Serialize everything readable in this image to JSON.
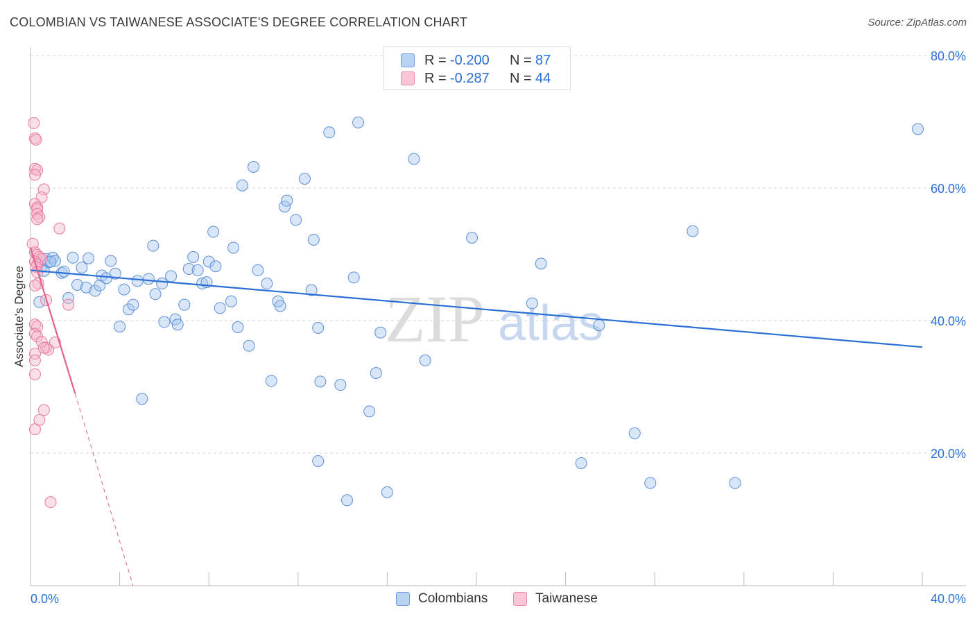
{
  "header": {
    "title": "COLOMBIAN VS TAIWANESE ASSOCIATE'S DEGREE CORRELATION CHART",
    "source": "Source: ZipAtlas.com"
  },
  "legend": {
    "rows": [
      {
        "r_label": "R = ",
        "r_value": "-0.200",
        "n_label": "N = ",
        "n_value": "87"
      },
      {
        "r_label": "R = ",
        "r_value": "-0.287",
        "n_label": "N = ",
        "n_value": "44"
      }
    ],
    "series": [
      "Colombians",
      "Taiwanese"
    ]
  },
  "watermark": {
    "zip": "ZIP",
    "atlas": "atlas"
  },
  "colors": {
    "blue_fill": "#a9c8f0",
    "blue_stroke": "#5b8fd8",
    "blue_line": "#2a6fd6",
    "pink_fill": "#f5b7c9",
    "pink_stroke": "#e87ba0",
    "pink_line": "#e4608e",
    "tick_label": "#2a6fd6",
    "grid": "#d5d5d5"
  },
  "chart_data": {
    "type": "scatter",
    "title": "COLOMBIAN VS TAIWANESE ASSOCIATE'S DEGREE CORRELATION CHART",
    "xlabel": "",
    "ylabel": "Associate's Degree",
    "xlim": [
      0,
      40
    ],
    "ylim": [
      0,
      80
    ],
    "x_tick_labels": [
      "0.0%",
      "40.0%"
    ],
    "y_ticks": [
      20,
      40,
      60,
      80
    ],
    "y_tick_labels": [
      "20.0%",
      "40.0%",
      "60.0%",
      "80.0%"
    ],
    "grid": true,
    "legend_position": "top-center",
    "series": [
      {
        "name": "Colombians",
        "color": "#a9c8f0",
        "trend": {
          "x": [
            0,
            40
          ],
          "y": [
            47.6,
            36.0
          ],
          "style": "solid"
        },
        "points": [
          [
            0.5,
            48.1
          ],
          [
            0.7,
            49.3
          ],
          [
            0.8,
            48.8
          ],
          [
            1.0,
            49.5
          ],
          [
            1.1,
            49.0
          ],
          [
            1.4,
            47.2
          ],
          [
            1.5,
            47.4
          ],
          [
            1.7,
            43.4
          ],
          [
            1.9,
            49.5
          ],
          [
            2.1,
            45.4
          ],
          [
            2.3,
            48.0
          ],
          [
            2.5,
            45.0
          ],
          [
            2.6,
            49.4
          ],
          [
            2.9,
            44.5
          ],
          [
            3.1,
            45.3
          ],
          [
            3.2,
            46.8
          ],
          [
            3.4,
            46.4
          ],
          [
            3.6,
            49.0
          ],
          [
            3.8,
            47.1
          ],
          [
            4.0,
            39.1
          ],
          [
            4.2,
            44.7
          ],
          [
            4.4,
            41.7
          ],
          [
            4.6,
            42.4
          ],
          [
            4.8,
            46.0
          ],
          [
            5.0,
            28.2
          ],
          [
            5.3,
            46.3
          ],
          [
            5.5,
            51.3
          ],
          [
            5.6,
            44.0
          ],
          [
            5.9,
            45.6
          ],
          [
            6.0,
            39.8
          ],
          [
            6.3,
            46.7
          ],
          [
            6.5,
            40.2
          ],
          [
            6.6,
            39.4
          ],
          [
            6.9,
            42.4
          ],
          [
            7.1,
            47.8
          ],
          [
            7.3,
            49.6
          ],
          [
            7.5,
            47.6
          ],
          [
            7.7,
            45.6
          ],
          [
            7.9,
            45.8
          ],
          [
            8.0,
            48.9
          ],
          [
            8.2,
            53.4
          ],
          [
            8.3,
            48.2
          ],
          [
            8.5,
            41.9
          ],
          [
            9.0,
            42.9
          ],
          [
            9.1,
            51.0
          ],
          [
            9.3,
            39.0
          ],
          [
            9.5,
            60.4
          ],
          [
            9.8,
            36.2
          ],
          [
            10.0,
            63.2
          ],
          [
            10.2,
            47.6
          ],
          [
            10.6,
            45.6
          ],
          [
            10.8,
            30.9
          ],
          [
            11.1,
            42.9
          ],
          [
            11.2,
            42.2
          ],
          [
            11.4,
            57.2
          ],
          [
            11.5,
            58.1
          ],
          [
            11.9,
            55.2
          ],
          [
            12.3,
            61.4
          ],
          [
            12.6,
            44.6
          ],
          [
            12.7,
            52.2
          ],
          [
            12.9,
            18.8
          ],
          [
            12.9,
            38.9
          ],
          [
            13.0,
            30.8
          ],
          [
            13.4,
            68.4
          ],
          [
            13.9,
            30.3
          ],
          [
            14.2,
            12.9
          ],
          [
            14.5,
            46.5
          ],
          [
            14.7,
            69.9
          ],
          [
            15.2,
            26.3
          ],
          [
            15.5,
            32.1
          ],
          [
            15.7,
            38.2
          ],
          [
            16.0,
            14.1
          ],
          [
            17.2,
            64.4
          ],
          [
            17.7,
            34.0
          ],
          [
            19.8,
            52.5
          ],
          [
            22.5,
            42.6
          ],
          [
            22.9,
            48.6
          ],
          [
            24.7,
            18.5
          ],
          [
            25.5,
            39.3
          ],
          [
            27.1,
            23.0
          ],
          [
            27.8,
            15.5
          ],
          [
            29.7,
            53.5
          ],
          [
            31.6,
            15.5
          ],
          [
            39.8,
            68.9
          ],
          [
            0.4,
            42.8
          ],
          [
            0.6,
            47.5
          ],
          [
            0.9,
            48.9
          ]
        ]
      },
      {
        "name": "Taiwanese",
        "color": "#f5b7c9",
        "trend": {
          "x": [
            0,
            2
          ],
          "y": [
            51.0,
            29.0
          ],
          "style": "solid",
          "extended_to": [
            4.6,
            0
          ],
          "extended_style": "dashed"
        },
        "points": [
          [
            0.15,
            69.8
          ],
          [
            0.2,
            67.5
          ],
          [
            0.25,
            67.3
          ],
          [
            0.2,
            62.9
          ],
          [
            0.3,
            62.7
          ],
          [
            0.2,
            62.0
          ],
          [
            0.6,
            59.8
          ],
          [
            0.5,
            58.6
          ],
          [
            0.2,
            57.6
          ],
          [
            0.3,
            57.1
          ],
          [
            0.3,
            56.8
          ],
          [
            0.3,
            56.1
          ],
          [
            0.4,
            55.6
          ],
          [
            0.3,
            55.3
          ],
          [
            1.3,
            53.9
          ],
          [
            0.1,
            51.6
          ],
          [
            0.2,
            50.3
          ],
          [
            0.3,
            49.9
          ],
          [
            0.4,
            49.6
          ],
          [
            0.5,
            49.3
          ],
          [
            0.2,
            48.9
          ],
          [
            0.3,
            48.5
          ],
          [
            0.25,
            48.1
          ],
          [
            0.3,
            47.3
          ],
          [
            0.35,
            45.6
          ],
          [
            0.2,
            45.3
          ],
          [
            0.7,
            43.1
          ],
          [
            1.7,
            42.4
          ],
          [
            0.2,
            39.4
          ],
          [
            0.3,
            39.1
          ],
          [
            0.2,
            38.0
          ],
          [
            0.3,
            37.6
          ],
          [
            0.5,
            36.8
          ],
          [
            1.1,
            36.7
          ],
          [
            0.7,
            35.9
          ],
          [
            0.8,
            35.6
          ],
          [
            0.2,
            35.0
          ],
          [
            0.2,
            34.0
          ],
          [
            0.2,
            31.9
          ],
          [
            0.6,
            26.5
          ],
          [
            0.4,
            25.0
          ],
          [
            0.2,
            23.6
          ],
          [
            0.9,
            12.6
          ],
          [
            0.6,
            35.9
          ]
        ]
      }
    ]
  }
}
